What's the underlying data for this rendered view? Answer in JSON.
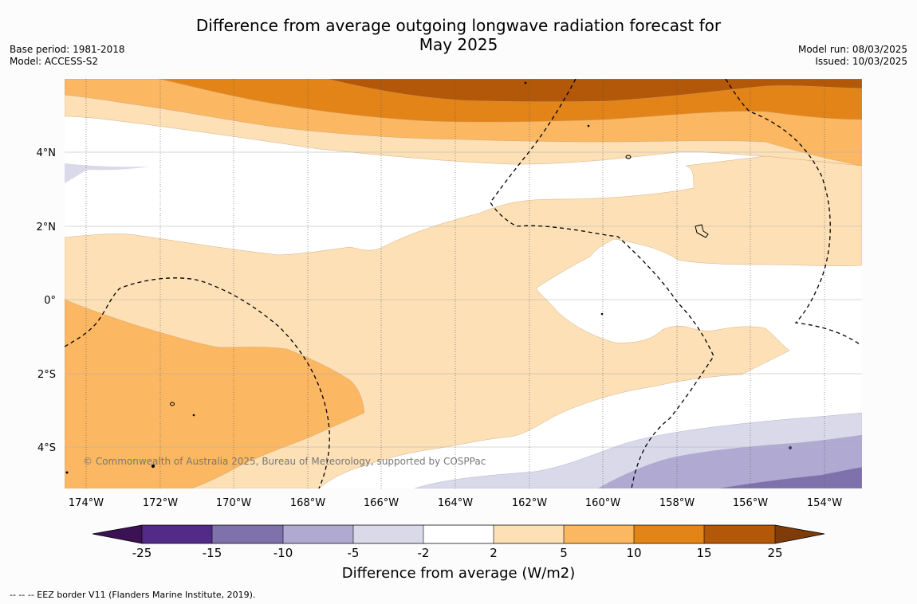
{
  "title_line1": "Difference from average outgoing longwave radiation forecast for",
  "title_line2": "May 2025",
  "base_period": "Base period: 1981-2018",
  "model": "Model: ACCESS-S2",
  "model_run": "Model run: 08/03/2025",
  "issued": "Issued: 10/03/2025",
  "copyright": "© Commonwealth of Australia 2025, Bureau of Meteorology, supported by COSPPac",
  "footer_legend": "--  --  -- EEZ border V11 (Flanders Marine Institute, 2019).",
  "map": {
    "lon_ticks": [
      "174°W",
      "172°W",
      "170°W",
      "168°W",
      "166°W",
      "164°W",
      "162°W",
      "160°W",
      "158°W",
      "156°W",
      "154°W"
    ],
    "lat_ticks": [
      "4°N",
      "2°N",
      "0°",
      "2°S",
      "4°S"
    ]
  },
  "colorbar": {
    "label": "Difference from average (W/m2)",
    "ticks": [
      "-25",
      "-15",
      "-10",
      "-5",
      "-2",
      "2",
      "5",
      "10",
      "15",
      "25"
    ],
    "colors": [
      "#3d1255",
      "#522a87",
      "#7f72ac",
      "#b0aad2",
      "#d9d9ea",
      "#ffffff",
      "#fde0b6",
      "#fbb762",
      "#e28418",
      "#b35708",
      "#7f3b08"
    ]
  }
}
